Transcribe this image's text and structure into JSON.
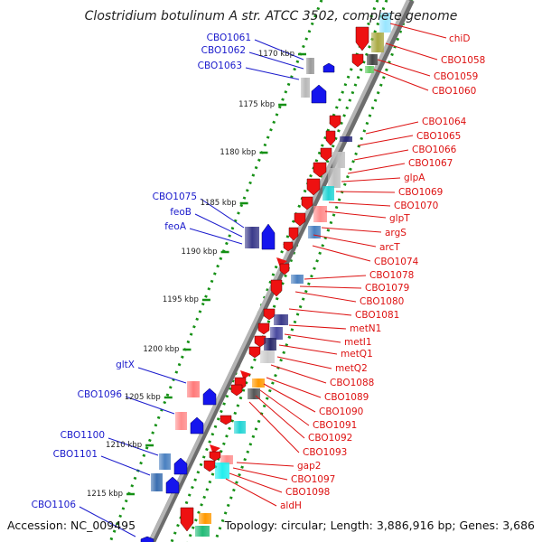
{
  "title": "Clostridium botulinum A str. ATCC 3502, complete genome",
  "footer": {
    "accession": "Accession: NC_009495",
    "summary": "Topology: circular; Length: 3,886,916 bp; Genes: 3,686"
  },
  "colors": {
    "left_label": "#1a1acc",
    "right_label": "#dd1111",
    "backbone": "#888888",
    "ring": "#159015",
    "forward_gene": "#1515ee",
    "reverse_gene": "#ee1111"
  },
  "kbp_labels": [
    "1170 kbp",
    "1175 kbp",
    "1180 kbp",
    "1185 kbp",
    "1190 kbp",
    "1195 kbp",
    "1200 kbp",
    "1205 kbp",
    "1210 kbp",
    "1215 kbp"
  ],
  "left_gene_labels": [
    "CBO1061",
    "CBO1062",
    "CBO1063",
    "CBO1075",
    "feoB",
    "feoA",
    "gltX",
    "CBO1096",
    "CBO1100",
    "CBO1101",
    "CBO1106"
  ],
  "right_gene_labels": [
    "chiD",
    "CBO1058",
    "CBO1059",
    "CBO1060",
    "CBO1064",
    "CBO1065",
    "CBO1066",
    "CBO1067",
    "glpA",
    "CBO1069",
    "CBO1070",
    "glpT",
    "argS",
    "arcT",
    "CBO1074",
    "CBO1078",
    "CBO1079",
    "CBO1080",
    "CBO1081",
    "metN1",
    "metI1",
    "metQ1",
    "metQ2",
    "CBO1088",
    "CBO1089",
    "CBO1090",
    "CBO1091",
    "CBO1092",
    "CBO1093",
    "gap2",
    "CBO1097",
    "CBO1098",
    "aldH"
  ]
}
